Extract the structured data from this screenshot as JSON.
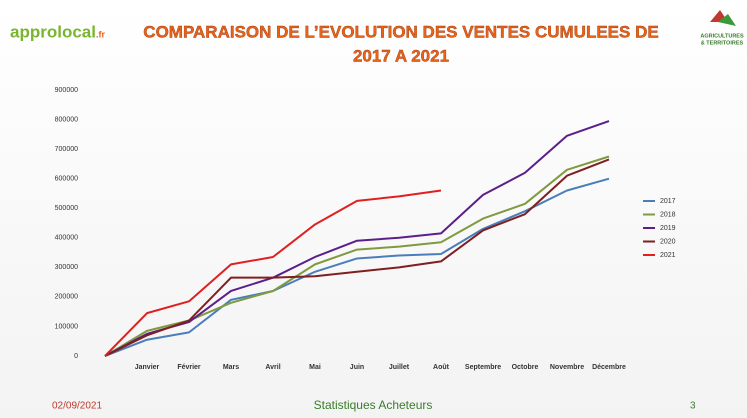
{
  "slide": {
    "title_lines": [
      "COMPARAISON DE L’EVOLUTION DES VENTES CUMULEES DE",
      "2017 A 2021"
    ],
    "logo_left": {
      "name": "approlocal",
      "suffix": ".fr"
    },
    "logo_right": {
      "line1": "AGRICULTURES",
      "line2": "& TERRITOIRES"
    },
    "footer": {
      "date": "02/09/2021",
      "center": "Statistiques Acheteurs",
      "page": "3"
    }
  },
  "chart_data": {
    "type": "line",
    "categories": [
      null,
      "Janvier",
      "Février",
      "Mars",
      "Avril",
      "Mai",
      "Juin",
      "Juillet",
      "Août",
      "Septembre",
      "Octobre",
      "Novembre",
      "Décembre"
    ],
    "series": [
      {
        "name": "2017",
        "color": "#4a7ebb",
        "values": [
          0,
          55000,
          80000,
          190000,
          220000,
          285000,
          330000,
          340000,
          345000,
          430000,
          490000,
          560000,
          600000
        ]
      },
      {
        "name": "2018",
        "color": "#7f9a3f",
        "values": [
          0,
          85000,
          120000,
          180000,
          220000,
          310000,
          360000,
          370000,
          385000,
          465000,
          515000,
          630000,
          675000
        ]
      },
      {
        "name": "2019",
        "color": "#5b1f8a",
        "values": [
          0,
          75000,
          115000,
          220000,
          265000,
          335000,
          390000,
          400000,
          415000,
          545000,
          620000,
          745000,
          795000
        ]
      },
      {
        "name": "2020",
        "color": "#7f1f1f",
        "values": [
          0,
          70000,
          120000,
          265000,
          265000,
          270000,
          285000,
          300000,
          320000,
          425000,
          480000,
          610000,
          665000
        ]
      },
      {
        "name": "2021",
        "color": "#e02020",
        "values": [
          0,
          145000,
          185000,
          310000,
          335000,
          445000,
          525000,
          540000,
          560000,
          null,
          null,
          null,
          null
        ]
      }
    ],
    "ylim": [
      0,
      900000
    ],
    "yticks": [
      0,
      100000,
      200000,
      300000,
      400000,
      500000,
      600000,
      700000,
      800000,
      900000
    ],
    "grid": false,
    "legend": "right"
  }
}
